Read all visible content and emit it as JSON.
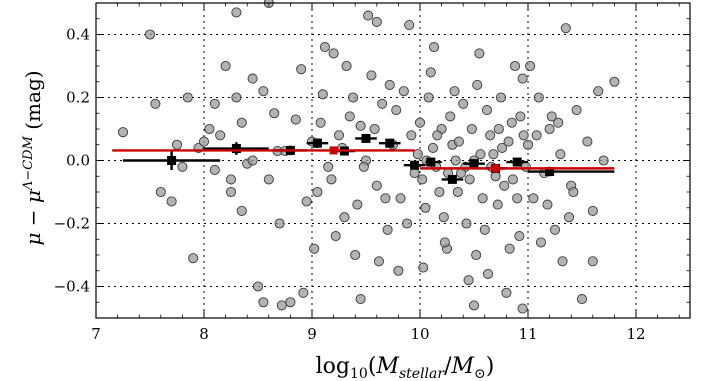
{
  "chart_data": {
    "type": "scatter",
    "title": "",
    "xlabel": "log10(Mstellar/M⊙)",
    "ylabel": "μ − μΛ−CDM    (mag)",
    "xlim": [
      7,
      12.5
    ],
    "ylim": [
      -0.5,
      0.5
    ],
    "xticks": [
      "7",
      "8",
      "9",
      "10",
      "11",
      "12"
    ],
    "yticks": [
      "−0.4",
      "−0.2",
      "0.0",
      "0.2",
      "0.4"
    ],
    "grid": true,
    "colors": {
      "scatter_fill": "#9a9a9a",
      "scatter_edge": "#3a3a3a",
      "binned_black": "#000000",
      "binned_red": "#cc0000"
    },
    "series": [
      {
        "kind": "scatter",
        "points": [
          [
            7.25,
            0.09
          ],
          [
            7.5,
            0.4
          ],
          [
            7.55,
            0.18
          ],
          [
            7.6,
            -0.1
          ],
          [
            7.7,
            -0.13
          ],
          [
            7.75,
            0.05
          ],
          [
            7.8,
            -0.02
          ],
          [
            7.85,
            0.2
          ],
          [
            7.9,
            -0.31
          ],
          [
            7.95,
            0.04
          ],
          [
            8.0,
            0.06
          ],
          [
            8.05,
            0.1
          ],
          [
            8.1,
            -0.03
          ],
          [
            8.15,
            0.08
          ],
          [
            8.2,
            0.3
          ],
          [
            8.25,
            -0.1
          ],
          [
            8.3,
            0.2
          ],
          [
            8.35,
            0.12
          ],
          [
            8.4,
            -0.01
          ],
          [
            8.45,
            0.26
          ],
          [
            8.5,
            -0.4
          ],
          [
            8.55,
            0.22
          ],
          [
            8.6,
            -0.06
          ],
          [
            8.65,
            0.15
          ],
          [
            8.7,
            -0.2
          ],
          [
            8.75,
            0.03
          ],
          [
            8.8,
            -0.45
          ],
          [
            8.85,
            0.13
          ],
          [
            8.9,
            0.29
          ],
          [
            8.95,
            -0.13
          ],
          [
            8.3,
            0.47
          ],
          [
            8.6,
            0.5
          ],
          [
            8.55,
            -0.45
          ],
          [
            8.72,
            -0.46
          ],
          [
            8.92,
            -0.42
          ],
          [
            8.68,
            0.03
          ],
          [
            8.45,
            0.0
          ],
          [
            8.25,
            -0.06
          ],
          [
            8.1,
            0.18
          ],
          [
            8.35,
            -0.16
          ],
          [
            9.0,
            0.06
          ],
          [
            9.05,
            -0.1
          ],
          [
            9.1,
            0.21
          ],
          [
            9.15,
            -0.02
          ],
          [
            9.2,
            0.34
          ],
          [
            9.25,
            0.08
          ],
          [
            9.3,
            -0.18
          ],
          [
            9.35,
            0.14
          ],
          [
            9.4,
            -0.3
          ],
          [
            9.45,
            0.11
          ],
          [
            9.5,
            0.0
          ],
          [
            9.55,
            0.27
          ],
          [
            9.6,
            -0.08
          ],
          [
            9.65,
            0.18
          ],
          [
            9.7,
            -0.22
          ],
          [
            9.75,
            0.05
          ],
          [
            9.8,
            -0.35
          ],
          [
            9.85,
            0.22
          ],
          [
            9.9,
            0.43
          ],
          [
            9.95,
            -0.04
          ],
          [
            9.02,
            -0.28
          ],
          [
            9.12,
            0.36
          ],
          [
            9.22,
            -0.24
          ],
          [
            9.32,
            0.3
          ],
          [
            9.42,
            -0.14
          ],
          [
            9.52,
            0.46
          ],
          [
            9.62,
            -0.32
          ],
          [
            9.72,
            0.24
          ],
          [
            9.82,
            -0.12
          ],
          [
            9.92,
            0.08
          ],
          [
            9.08,
            0.12
          ],
          [
            9.18,
            -0.06
          ],
          [
            9.28,
            0.04
          ],
          [
            9.38,
            0.2
          ],
          [
            9.48,
            -0.02
          ],
          [
            9.58,
            0.1
          ],
          [
            9.68,
            -0.12
          ],
          [
            9.78,
            0.16
          ],
          [
            9.88,
            -0.2
          ],
          [
            9.98,
            0.02
          ],
          [
            10.0,
            0.12
          ],
          [
            10.05,
            -0.15
          ],
          [
            10.1,
            0.28
          ],
          [
            10.15,
            -0.02
          ],
          [
            10.2,
            0.1
          ],
          [
            10.25,
            -0.28
          ],
          [
            10.3,
            0.05
          ],
          [
            10.35,
            -0.1
          ],
          [
            10.4,
            0.18
          ],
          [
            10.45,
            -0.38
          ],
          [
            10.5,
            0.0
          ],
          [
            10.55,
            0.34
          ],
          [
            10.6,
            -0.22
          ],
          [
            10.65,
            0.08
          ],
          [
            10.7,
            -0.05
          ],
          [
            10.75,
            0.2
          ],
          [
            10.8,
            -0.42
          ],
          [
            10.85,
            0.12
          ],
          [
            10.9,
            -0.12
          ],
          [
            10.95,
            0.26
          ],
          [
            10.02,
            -0.06
          ],
          [
            10.12,
            0.04
          ],
          [
            10.22,
            -0.18
          ],
          [
            10.32,
            0.22
          ],
          [
            10.42,
            -0.02
          ],
          [
            10.52,
            -0.3
          ],
          [
            10.62,
            0.16
          ],
          [
            10.72,
            -0.14
          ],
          [
            10.82,
            0.06
          ],
          [
            10.92,
            -0.24
          ],
          [
            10.08,
            0.2
          ],
          [
            10.18,
            -0.1
          ],
          [
            10.28,
            0.14
          ],
          [
            10.38,
            -0.04
          ],
          [
            10.48,
            0.1
          ],
          [
            10.58,
            -0.12
          ],
          [
            10.68,
            0.02
          ],
          [
            10.78,
            -0.08
          ],
          [
            10.88,
            0.3
          ],
          [
            10.98,
            -0.02
          ],
          [
            10.03,
            -0.34
          ],
          [
            10.13,
            0.36
          ],
          [
            10.23,
            -0.26
          ],
          [
            10.33,
            0.0
          ],
          [
            10.43,
            -0.2
          ],
          [
            10.53,
            0.24
          ],
          [
            10.63,
            -0.36
          ],
          [
            10.73,
            0.1
          ],
          [
            10.83,
            -0.28
          ],
          [
            10.93,
            0.14
          ],
          [
            11.0,
            0.05
          ],
          [
            11.05,
            -0.12
          ],
          [
            11.1,
            0.2
          ],
          [
            11.15,
            -0.04
          ],
          [
            11.2,
            0.1
          ],
          [
            11.25,
            -0.22
          ],
          [
            11.3,
            0.02
          ],
          [
            11.35,
            0.42
          ],
          [
            11.4,
            -0.08
          ],
          [
            11.45,
            0.16
          ],
          [
            11.5,
            -0.44
          ],
          [
            11.55,
            0.06
          ],
          [
            11.6,
            -0.16
          ],
          [
            11.65,
            0.22
          ],
          [
            11.7,
            0.0
          ],
          [
            11.02,
            0.3
          ],
          [
            11.12,
            -0.26
          ],
          [
            11.22,
            0.14
          ],
          [
            11.32,
            -0.32
          ],
          [
            11.42,
            -0.1
          ],
          [
            10.06,
            0.0
          ],
          [
            10.16,
            0.08
          ],
          [
            10.26,
            -0.04
          ],
          [
            10.36,
            0.06
          ],
          [
            10.46,
            -0.06
          ],
          [
            10.56,
            0.02
          ],
          [
            10.66,
            -0.02
          ],
          [
            10.76,
            0.04
          ],
          [
            10.86,
            -0.06
          ],
          [
            10.96,
            0.08
          ],
          [
            11.8,
            0.25
          ],
          [
            11.08,
            0.08
          ],
          [
            11.18,
            -0.14
          ],
          [
            11.28,
            0.12
          ],
          [
            11.38,
            -0.18
          ],
          [
            10.95,
            -0.47
          ],
          [
            10.5,
            -0.46
          ],
          [
            11.6,
            -0.32
          ],
          [
            9.45,
            -0.44
          ],
          [
            9.6,
            0.44
          ]
        ]
      },
      {
        "kind": "binned",
        "name": "",
        "color": "#000000",
        "points": [
          {
            "x": 7.7,
            "y": 0.0,
            "xerr": [
              7.25,
              8.15
            ],
            "yerr": 0.03
          },
          {
            "x": 8.3,
            "y": 0.038,
            "xerr": [
              8.0,
              8.6
            ],
            "yerr": 0.02
          },
          {
            "x": 8.8,
            "y": 0.032,
            "xerr": [
              8.65,
              8.95
            ],
            "yerr": 0.015
          },
          {
            "x": 9.05,
            "y": 0.055,
            "xerr": [
              8.95,
              9.15
            ],
            "yerr": 0.015
          },
          {
            "x": 9.3,
            "y": 0.03,
            "xerr": [
              9.2,
              9.4
            ],
            "yerr": 0.013
          },
          {
            "x": 9.5,
            "y": 0.07,
            "xerr": [
              9.4,
              9.6
            ],
            "yerr": 0.013
          },
          {
            "x": 9.72,
            "y": 0.055,
            "xerr": [
              9.62,
              9.82
            ],
            "yerr": 0.013
          },
          {
            "x": 9.95,
            "y": -0.015,
            "xerr": [
              9.85,
              10.05
            ],
            "yerr": 0.012
          },
          {
            "x": 10.1,
            "y": -0.005,
            "xerr": [
              10.05,
              10.2
            ],
            "yerr": 0.012
          },
          {
            "x": 10.3,
            "y": -0.06,
            "xerr": [
              10.2,
              10.4
            ],
            "yerr": 0.012
          },
          {
            "x": 10.5,
            "y": -0.01,
            "xerr": [
              10.4,
              10.6
            ],
            "yerr": 0.012
          },
          {
            "x": 10.7,
            "y": -0.025,
            "xerr": [
              10.6,
              10.8
            ],
            "yerr": 0.012
          },
          {
            "x": 10.9,
            "y": -0.005,
            "xerr": [
              10.8,
              11.0
            ],
            "yerr": 0.012
          },
          {
            "x": 11.2,
            "y": -0.035,
            "xerr": [
              11.0,
              11.8
            ],
            "yerr": 0.015
          }
        ]
      },
      {
        "kind": "binned",
        "name": "",
        "color": "#cc0000",
        "points": [
          {
            "x": 9.2,
            "y": 0.032,
            "xerr": [
              7.15,
              9.95
            ],
            "yerr": 0.008
          },
          {
            "x": 10.7,
            "y": -0.025,
            "xerr": [
              10.0,
              11.8
            ],
            "yerr": 0.008
          }
        ]
      }
    ]
  }
}
